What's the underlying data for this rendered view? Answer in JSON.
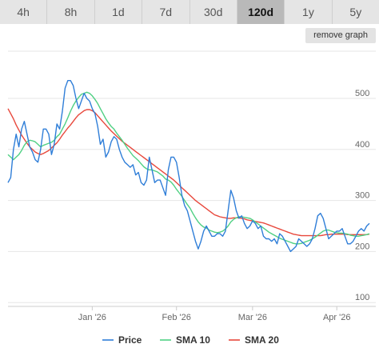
{
  "tabs": [
    {
      "label": "4h",
      "active": false
    },
    {
      "label": "8h",
      "active": false
    },
    {
      "label": "1d",
      "active": false
    },
    {
      "label": "7d",
      "active": false
    },
    {
      "label": "30d",
      "active": false
    },
    {
      "label": "120d",
      "active": true
    },
    {
      "label": "1y",
      "active": false
    },
    {
      "label": "5y",
      "active": false
    }
  ],
  "remove_graph_label": "remove graph",
  "colors": {
    "price": "#2f7ed8",
    "sma10": "#4fd083",
    "sma20": "#e8483c",
    "grid": "#e6e6e6"
  },
  "chart_data": {
    "type": "line",
    "x_ticks": [
      "Jan '26",
      "Feb '26",
      "Mar '26",
      "Apr '26"
    ],
    "x_tick_index": [
      31,
      62,
      90,
      121
    ],
    "y_ticks": [
      "500",
      "400",
      "300",
      "200",
      "100"
    ],
    "y_tick_values": [
      500,
      400,
      300,
      200,
      100
    ],
    "ylim": [
      100,
      500
    ],
    "grid": true,
    "legend_position": "bottom",
    "series": [
      {
        "name": "Price",
        "color_key": "price",
        "values": [
          335,
          345,
          400,
          430,
          405,
          440,
          455,
          430,
          405,
          395,
          380,
          375,
          400,
          440,
          440,
          430,
          390,
          410,
          450,
          440,
          475,
          520,
          535,
          535,
          525,
          500,
          480,
          495,
          510,
          500,
          495,
          480,
          470,
          445,
          410,
          420,
          385,
          395,
          415,
          425,
          420,
          400,
          385,
          375,
          370,
          365,
          370,
          350,
          355,
          335,
          330,
          340,
          385,
          360,
          335,
          340,
          340,
          325,
          310,
          360,
          385,
          385,
          375,
          345,
          310,
          290,
          280,
          260,
          240,
          220,
          205,
          220,
          240,
          250,
          240,
          230,
          230,
          235,
          235,
          230,
          240,
          280,
          320,
          305,
          280,
          265,
          270,
          255,
          245,
          250,
          260,
          255,
          245,
          250,
          230,
          225,
          225,
          220,
          225,
          215,
          235,
          230,
          220,
          210,
          200,
          205,
          210,
          225,
          220,
          215,
          210,
          215,
          225,
          245,
          270,
          275,
          265,
          245,
          225,
          230,
          235,
          240,
          240,
          245,
          230,
          215,
          215,
          220,
          230,
          240,
          245,
          240,
          250,
          255
        ]
      },
      {
        "name": "SMA 10",
        "color_key": "sma10",
        "values": [
          390,
          385,
          380,
          385,
          390,
          398,
          408,
          415,
          418,
          417,
          415,
          410,
          405,
          408,
          410,
          412,
          414,
          418,
          425,
          430,
          440,
          450,
          462,
          475,
          486,
          495,
          502,
          508,
          510,
          512,
          510,
          505,
          498,
          490,
          480,
          470,
          460,
          452,
          445,
          440,
          432,
          425,
          418,
          410,
          402,
          395,
          388,
          383,
          378,
          372,
          366,
          362,
          360,
          360,
          358,
          356,
          352,
          348,
          342,
          340,
          336,
          330,
          322,
          315,
          308,
          300,
          292,
          285,
          275,
          266,
          258,
          252,
          248,
          246,
          242,
          240,
          238,
          237,
          238,
          240,
          244,
          250,
          258,
          263,
          266,
          268,
          268,
          267,
          266,
          265,
          262,
          258,
          254,
          250,
          246,
          242,
          238,
          235,
          232,
          229,
          226,
          224,
          222,
          220,
          218,
          216,
          215,
          215,
          216,
          218,
          220,
          222,
          225,
          228,
          232,
          236,
          240,
          242,
          242,
          240,
          238,
          237,
          236,
          236,
          235,
          234,
          232,
          231,
          230,
          230,
          231,
          232,
          233,
          235
        ]
      },
      {
        "name": "SMA 20",
        "color_key": "sma20",
        "values": [
          480,
          470,
          460,
          448,
          438,
          428,
          420,
          412,
          405,
          400,
          395,
          392,
          390,
          392,
          395,
          398,
          403,
          408,
          413,
          420,
          428,
          435,
          442,
          448,
          455,
          462,
          468,
          472,
          476,
          478,
          478,
          476,
          472,
          466,
          460,
          454,
          448,
          442,
          436,
          431,
          426,
          421,
          416,
          412,
          408,
          404,
          400,
          396,
          392,
          388,
          384,
          380,
          376,
          372,
          368,
          364,
          360,
          356,
          352,
          348,
          344,
          340,
          335,
          330,
          325,
          320,
          315,
          310,
          305,
          300,
          296,
          292,
          288,
          284,
          280,
          276,
          272,
          270,
          268,
          267,
          266,
          265,
          265,
          266,
          266,
          266,
          265,
          264,
          262,
          261,
          260,
          259,
          258,
          257,
          256,
          254,
          252,
          250,
          248,
          246,
          244,
          242,
          240,
          238,
          236,
          234,
          233,
          232,
          231,
          231,
          231,
          231,
          231,
          231,
          231,
          231,
          232,
          233,
          233,
          234,
          234,
          234,
          234,
          234,
          234,
          233,
          233,
          233,
          233,
          233,
          233,
          233,
          233,
          234
        ]
      }
    ]
  }
}
